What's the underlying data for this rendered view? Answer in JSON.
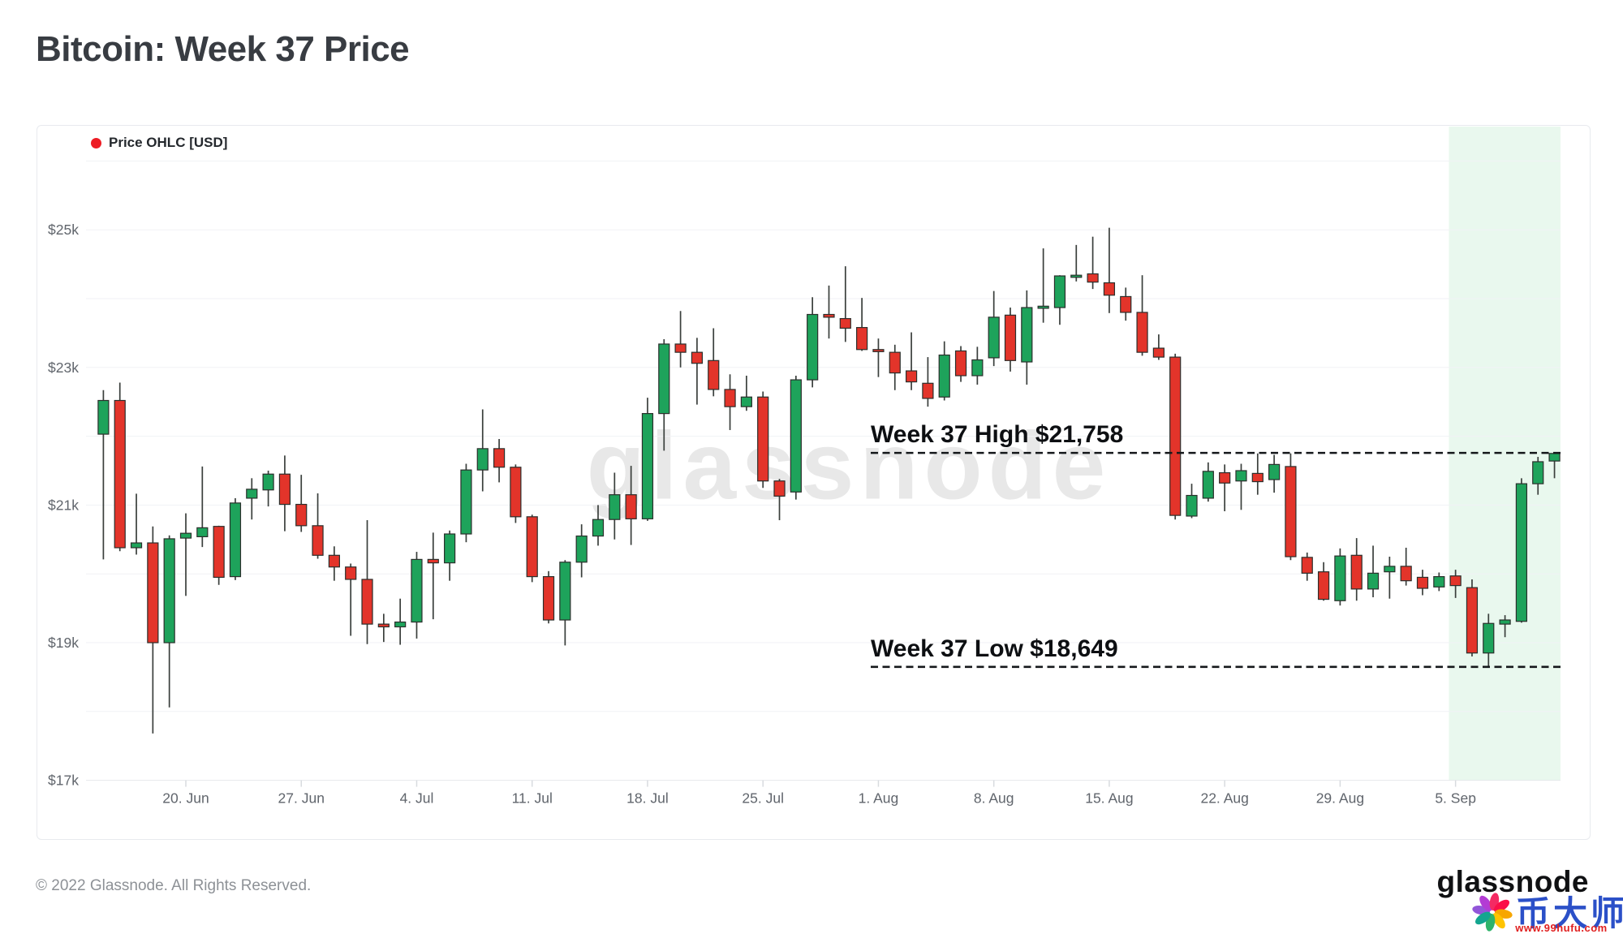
{
  "page": {
    "title": "Bitcoin: Week 37 Price",
    "footer": "© 2022 Glassnode. All Rights Reserved."
  },
  "legend": {
    "label": "Price OHLC [USD]",
    "dot_color": "#ed1c24"
  },
  "watermark": "glassnode",
  "branding": {
    "wordmark": "glassnode",
    "cn_name": "币大师",
    "cn_url": "www.99hufu.com"
  },
  "chart_data": {
    "type": "candlestick-ohlc",
    "title": "Bitcoin: Week 37 Price",
    "series_name": "Price OHLC [USD]",
    "y_axis": {
      "min": 17000,
      "max": 26000,
      "gridline_step": 1000,
      "ticks": [
        {
          "label": "$25k",
          "value": 25000
        },
        {
          "label": "$23k",
          "value": 23000
        },
        {
          "label": "$21k",
          "value": 21000
        },
        {
          "label": "$19k",
          "value": 19000
        },
        {
          "label": "$17k",
          "value": 17000
        }
      ]
    },
    "x_axis": {
      "ticks": [
        {
          "label": "20. Jun",
          "index": 5
        },
        {
          "label": "27. Jun",
          "index": 12
        },
        {
          "label": "4. Jul",
          "index": 19
        },
        {
          "label": "11. Jul",
          "index": 26
        },
        {
          "label": "18. Jul",
          "index": 33
        },
        {
          "label": "25. Jul",
          "index": 40
        },
        {
          "label": "1. Aug",
          "index": 47
        },
        {
          "label": "8. Aug",
          "index": 54
        },
        {
          "label": "15. Aug",
          "index": 61
        },
        {
          "label": "22. Aug",
          "index": 68
        },
        {
          "label": "29. Aug",
          "index": 75
        },
        {
          "label": "5. Sep",
          "index": 82
        }
      ]
    },
    "highlight_region": {
      "name": "Week 37",
      "start_index": 81.6,
      "color": "#e9f8ee"
    },
    "annotations": {
      "high": {
        "label": "Week 37 High $21,758",
        "value": 21758
      },
      "low": {
        "label": "Week 37 Low $18,649",
        "value": 18649
      }
    },
    "colors": {
      "up": "#1ea35b",
      "down": "#e3342a",
      "wick": "#3a3f3c",
      "body_border": "#2b2f2c"
    },
    "candles_format": [
      "date",
      "open",
      "high",
      "low",
      "close"
    ],
    "candles": [
      [
        "Jun 15",
        22030,
        22670,
        20210,
        22520
      ],
      [
        "Jun 16",
        22520,
        22780,
        20330,
        20380
      ],
      [
        "Jun 17",
        20380,
        21165,
        20280,
        20450
      ],
      [
        "Jun 18",
        20450,
        20690,
        17680,
        19000
      ],
      [
        "Jun 19",
        19000,
        20560,
        18060,
        20510
      ],
      [
        "Jun 20",
        20520,
        20880,
        19680,
        20590
      ],
      [
        "Jun 21",
        20540,
        21560,
        20390,
        20670
      ],
      [
        "Jun 22",
        20690,
        20700,
        19840,
        19950
      ],
      [
        "Jun 23",
        19960,
        21100,
        19910,
        21030
      ],
      [
        "Jun 24",
        21100,
        21390,
        20790,
        21230
      ],
      [
        "Jun 25",
        21220,
        21500,
        20980,
        21450
      ],
      [
        "Jun 26",
        21450,
        21720,
        20620,
        21010
      ],
      [
        "Jun 27",
        21010,
        21440,
        20610,
        20700
      ],
      [
        "Jun 28",
        20700,
        21170,
        20220,
        20270
      ],
      [
        "Jun 29",
        20270,
        20400,
        19900,
        20100
      ],
      [
        "Jun 30",
        20100,
        20150,
        19100,
        19920
      ],
      [
        "Jul 1",
        19920,
        20780,
        18980,
        19270
      ],
      [
        "Jul 2",
        19270,
        19420,
        19010,
        19230
      ],
      [
        "Jul 3",
        19230,
        19640,
        18970,
        19300
      ],
      [
        "Jul 4",
        19300,
        20320,
        19060,
        20210
      ],
      [
        "Jul 5",
        20210,
        20600,
        19340,
        20160
      ],
      [
        "Jul 6",
        20160,
        20630,
        19900,
        20580
      ],
      [
        "Jul 7",
        20580,
        21600,
        20460,
        21510
      ],
      [
        "Jul 8",
        21510,
        22390,
        21200,
        21820
      ],
      [
        "Jul 9",
        21820,
        21960,
        21330,
        21550
      ],
      [
        "Jul 10",
        21550,
        21590,
        20740,
        20830
      ],
      [
        "Jul 11",
        20830,
        20860,
        19880,
        19960
      ],
      [
        "Jul 12",
        19960,
        20040,
        19280,
        19330
      ],
      [
        "Jul 13",
        19330,
        20200,
        18960,
        20170
      ],
      [
        "Jul 14",
        20170,
        20720,
        19950,
        20550
      ],
      [
        "Jul 15",
        20550,
        21000,
        20410,
        20790
      ],
      [
        "Jul 16",
        20790,
        21470,
        20500,
        21150
      ],
      [
        "Jul 17",
        21150,
        21570,
        20420,
        20800
      ],
      [
        "Jul 18",
        20800,
        22560,
        20770,
        22330
      ],
      [
        "Jul 19",
        22330,
        23410,
        21790,
        23340
      ],
      [
        "Jul 20",
        23340,
        23820,
        23000,
        23220
      ],
      [
        "Jul 21",
        23220,
        23430,
        22460,
        23060
      ],
      [
        "Jul 22",
        23100,
        23570,
        22580,
        22680
      ],
      [
        "Jul 23",
        22680,
        22900,
        22090,
        22430
      ],
      [
        "Jul 24",
        22430,
        22880,
        22370,
        22570
      ],
      [
        "Jul 25",
        22570,
        22650,
        21250,
        21350
      ],
      [
        "Jul 26",
        21350,
        21380,
        20780,
        21130
      ],
      [
        "Jul 27",
        21190,
        22880,
        21080,
        22820
      ],
      [
        "Jul 28",
        22820,
        24020,
        22710,
        23770
      ],
      [
        "Jul 29",
        23770,
        24190,
        23420,
        23730
      ],
      [
        "Jul 30",
        23710,
        24470,
        23370,
        23570
      ],
      [
        "Jul 31",
        23580,
        24010,
        23240,
        23260
      ],
      [
        "Aug 1",
        23260,
        23420,
        22860,
        23230
      ],
      [
        "Aug 2",
        23220,
        23330,
        22670,
        22920
      ],
      [
        "Aug 3",
        22950,
        23510,
        22670,
        22790
      ],
      [
        "Aug 4",
        22770,
        23150,
        22430,
        22550
      ],
      [
        "Aug 5",
        22570,
        23380,
        22520,
        23180
      ],
      [
        "Aug 6",
        23240,
        23310,
        22790,
        22880
      ],
      [
        "Aug 7",
        22880,
        23300,
        22750,
        23110
      ],
      [
        "Aug 8",
        23140,
        24110,
        23020,
        23730
      ],
      [
        "Aug 9",
        23760,
        23870,
        22940,
        23100
      ],
      [
        "Aug 10",
        23080,
        24120,
        22750,
        23870
      ],
      [
        "Aug 11",
        23890,
        24730,
        23650,
        23890
      ],
      [
        "Aug 12",
        23870,
        24340,
        23620,
        24330
      ],
      [
        "Aug 13",
        24340,
        24780,
        24250,
        24340
      ],
      [
        "Aug 14",
        24360,
        24900,
        24140,
        24240
      ],
      [
        "Aug 15",
        24230,
        25030,
        23790,
        24050
      ],
      [
        "Aug 16",
        24030,
        24160,
        23680,
        23800
      ],
      [
        "Aug 17",
        23800,
        24340,
        23170,
        23220
      ],
      [
        "Aug 18",
        23280,
        23480,
        23110,
        23150
      ],
      [
        "Aug 19",
        23150,
        23200,
        20790,
        20850
      ],
      [
        "Aug 20",
        20840,
        21310,
        20810,
        21140
      ],
      [
        "Aug 21",
        21100,
        21620,
        21050,
        21490
      ],
      [
        "Aug 22",
        21470,
        21590,
        20910,
        21320
      ],
      [
        "Aug 23",
        21350,
        21600,
        20930,
        21500
      ],
      [
        "Aug 24",
        21460,
        21750,
        21150,
        21340
      ],
      [
        "Aug 25",
        21370,
        21730,
        21180,
        21590
      ],
      [
        "Aug 26",
        21560,
        21750,
        20200,
        20250
      ],
      [
        "Aug 27",
        20240,
        20310,
        19900,
        20010
      ],
      [
        "Aug 28",
        20030,
        20170,
        19610,
        19630
      ],
      [
        "Aug 29",
        19610,
        20370,
        19540,
        20260
      ],
      [
        "Aug 30",
        20270,
        20520,
        19610,
        19780
      ],
      [
        "Aug 31",
        19780,
        20410,
        19660,
        20010
      ],
      [
        "Sep 1",
        20030,
        20250,
        19640,
        20110
      ],
      [
        "Sep 2",
        20110,
        20380,
        19830,
        19900
      ],
      [
        "Sep 3",
        19950,
        20060,
        19690,
        19790
      ],
      [
        "Sep 4",
        19810,
        20020,
        19750,
        19960
      ],
      [
        "Sep 5",
        19970,
        20060,
        19650,
        19830
      ],
      [
        "Sep 6",
        19800,
        19920,
        18800,
        18850
      ],
      [
        "Sep 7",
        18850,
        19420,
        18650,
        19280
      ],
      [
        "Sep 8",
        19270,
        19400,
        19080,
        19330
      ],
      [
        "Sep 9",
        19310,
        21390,
        19290,
        21310
      ],
      [
        "Sep 10",
        21310,
        21700,
        21150,
        21630
      ],
      [
        "Sep 11",
        21640,
        21758,
        21390,
        21750
      ]
    ]
  }
}
